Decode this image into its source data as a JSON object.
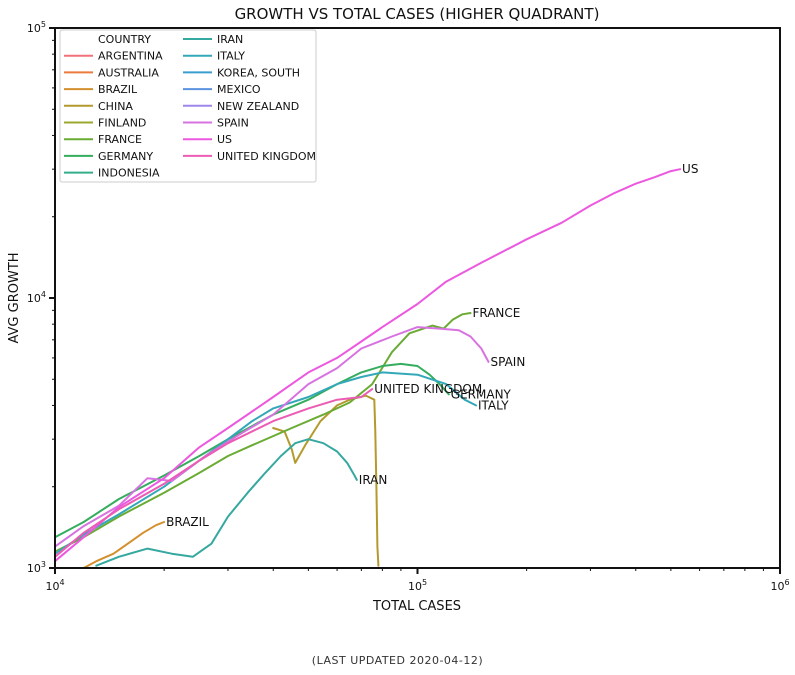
{
  "chart_data": {
    "type": "line",
    "title": "GROWTH VS TOTAL CASES (HIGHER QUADRANT)",
    "xlabel": "TOTAL CASES",
    "ylabel": "AVG GROWTH",
    "xscale": "log",
    "yscale": "log",
    "xlim": [
      10000,
      1000000
    ],
    "ylim": [
      1000,
      100000
    ],
    "xticks": [
      "10^4",
      "10^5",
      "10^6"
    ],
    "yticks": [
      "10^3",
      "10^4",
      "10^5"
    ],
    "legend_title": "COUNTRY",
    "legend_position": "top-left",
    "grid": false,
    "series": [
      {
        "name": "ARGENTINA",
        "color": "#f0717a",
        "label": "",
        "points": []
      },
      {
        "name": "AUSTRALIA",
        "color": "#ec7a3a",
        "label": "",
        "points": []
      },
      {
        "name": "BRAZIL",
        "color": "#d4902e",
        "label": "BRAZIL",
        "points": [
          [
            12000,
            1000
          ],
          [
            13000,
            1060
          ],
          [
            14500,
            1130
          ],
          [
            16000,
            1240
          ],
          [
            17500,
            1350
          ],
          [
            19000,
            1440
          ],
          [
            20000,
            1480
          ]
        ]
      },
      {
        "name": "CHINA",
        "color": "#b49a2e",
        "label": "",
        "points": [
          [
            40000,
            3300
          ],
          [
            43000,
            3200
          ],
          [
            45000,
            2750
          ],
          [
            46000,
            2450
          ],
          [
            49000,
            2850
          ],
          [
            54000,
            3500
          ],
          [
            60000,
            4000
          ],
          [
            65000,
            4200
          ],
          [
            72000,
            4350
          ],
          [
            76000,
            4200
          ],
          [
            76500,
            3200
          ],
          [
            77000,
            2000
          ],
          [
            77500,
            1200
          ],
          [
            78000,
            1020
          ]
        ]
      },
      {
        "name": "FINLAND",
        "color": "#9ba82e",
        "label": "",
        "points": []
      },
      {
        "name": "FRANCE",
        "color": "#6aab34",
        "label": "FRANCE",
        "points": [
          [
            10000,
            1150
          ],
          [
            12000,
            1300
          ],
          [
            15000,
            1550
          ],
          [
            20000,
            1900
          ],
          [
            25000,
            2250
          ],
          [
            30000,
            2600
          ],
          [
            35000,
            2850
          ],
          [
            45000,
            3300
          ],
          [
            55000,
            3700
          ],
          [
            65000,
            4100
          ],
          [
            75000,
            4800
          ],
          [
            85000,
            6300
          ],
          [
            95000,
            7400
          ],
          [
            110000,
            7900
          ],
          [
            118000,
            7700
          ],
          [
            125000,
            8300
          ],
          [
            133000,
            8700
          ],
          [
            140000,
            8800
          ]
        ]
      },
      {
        "name": "GERMANY",
        "color": "#34ad5e",
        "label": "GERMANY",
        "points": [
          [
            10000,
            1300
          ],
          [
            12000,
            1480
          ],
          [
            15000,
            1800
          ],
          [
            20000,
            2200
          ],
          [
            25000,
            2600
          ],
          [
            30000,
            3000
          ],
          [
            40000,
            3700
          ],
          [
            50000,
            4200
          ],
          [
            60000,
            4800
          ],
          [
            70000,
            5300
          ],
          [
            80000,
            5600
          ],
          [
            90000,
            5700
          ],
          [
            100000,
            5600
          ],
          [
            108000,
            5200
          ],
          [
            115000,
            4800
          ],
          [
            122000,
            4400
          ]
        ]
      },
      {
        "name": "INDONESIA",
        "color": "#34ad8a",
        "label": "",
        "points": []
      },
      {
        "name": "IRAN",
        "color": "#35a8a0",
        "label": "IRAN",
        "points": [
          [
            13000,
            1020
          ],
          [
            15000,
            1100
          ],
          [
            18000,
            1180
          ],
          [
            21000,
            1130
          ],
          [
            24000,
            1100
          ],
          [
            27000,
            1230
          ],
          [
            30000,
            1550
          ],
          [
            34000,
            1900
          ],
          [
            38000,
            2250
          ],
          [
            42000,
            2600
          ],
          [
            46000,
            2900
          ],
          [
            50000,
            3000
          ],
          [
            55000,
            2900
          ],
          [
            60000,
            2700
          ],
          [
            64000,
            2450
          ],
          [
            67000,
            2200
          ],
          [
            68000,
            2120
          ]
        ]
      },
      {
        "name": "ITALY",
        "color": "#33a8b8",
        "label": "ITALY",
        "points": [
          [
            10000,
            1130
          ],
          [
            12000,
            1330
          ],
          [
            15000,
            1580
          ],
          [
            20000,
            2000
          ],
          [
            25000,
            2500
          ],
          [
            30000,
            3000
          ],
          [
            35000,
            3500
          ],
          [
            40000,
            3900
          ],
          [
            50000,
            4300
          ],
          [
            60000,
            4800
          ],
          [
            70000,
            5100
          ],
          [
            80000,
            5300
          ],
          [
            100000,
            5200
          ],
          [
            120000,
            4800
          ],
          [
            135000,
            4200
          ],
          [
            145000,
            4000
          ]
        ]
      },
      {
        "name": "KOREA, SOUTH",
        "color": "#3a9fcf",
        "label": "",
        "points": []
      },
      {
        "name": "MEXICO",
        "color": "#5b93e0",
        "label": "",
        "points": []
      },
      {
        "name": "NEW ZEALAND",
        "color": "#9f86ea",
        "label": "",
        "points": []
      },
      {
        "name": "SPAIN",
        "color": "#d773e0",
        "label": "SPAIN",
        "points": [
          [
            10000,
            1200
          ],
          [
            12000,
            1430
          ],
          [
            15000,
            1700
          ],
          [
            18000,
            2150
          ],
          [
            21000,
            2100
          ],
          [
            26000,
            2600
          ],
          [
            32000,
            3100
          ],
          [
            40000,
            3700
          ],
          [
            50000,
            4800
          ],
          [
            60000,
            5500
          ],
          [
            70000,
            6500
          ],
          [
            85000,
            7200
          ],
          [
            100000,
            7800
          ],
          [
            115000,
            7700
          ],
          [
            130000,
            7600
          ],
          [
            140000,
            7200
          ],
          [
            150000,
            6500
          ],
          [
            157000,
            5800
          ]
        ]
      },
      {
        "name": "US",
        "color": "#ec58e0",
        "label": "US",
        "points": [
          [
            10000,
            1060
          ],
          [
            12000,
            1300
          ],
          [
            15000,
            1680
          ],
          [
            20000,
            2150
          ],
          [
            25000,
            2800
          ],
          [
            30000,
            3300
          ],
          [
            40000,
            4300
          ],
          [
            50000,
            5300
          ],
          [
            60000,
            6000
          ],
          [
            70000,
            6900
          ],
          [
            80000,
            7800
          ],
          [
            100000,
            9500
          ],
          [
            120000,
            11500
          ],
          [
            150000,
            13500
          ],
          [
            200000,
            16500
          ],
          [
            250000,
            19000
          ],
          [
            300000,
            22000
          ],
          [
            350000,
            24500
          ],
          [
            400000,
            26500
          ],
          [
            450000,
            28000
          ],
          [
            500000,
            29500
          ],
          [
            530000,
            30000
          ]
        ]
      },
      {
        "name": "UNITED KINGDOM",
        "color": "#ec5bb4",
        "label": "UNITED KINGDOM",
        "points": [
          [
            10000,
            1100
          ],
          [
            12000,
            1350
          ],
          [
            15000,
            1650
          ],
          [
            20000,
            2050
          ],
          [
            25000,
            2500
          ],
          [
            30000,
            2900
          ],
          [
            40000,
            3500
          ],
          [
            50000,
            3900
          ],
          [
            60000,
            4200
          ],
          [
            70000,
            4300
          ],
          [
            75000,
            4600
          ]
        ]
      }
    ]
  },
  "footer": "(LAST UPDATED 2020-04-12)"
}
